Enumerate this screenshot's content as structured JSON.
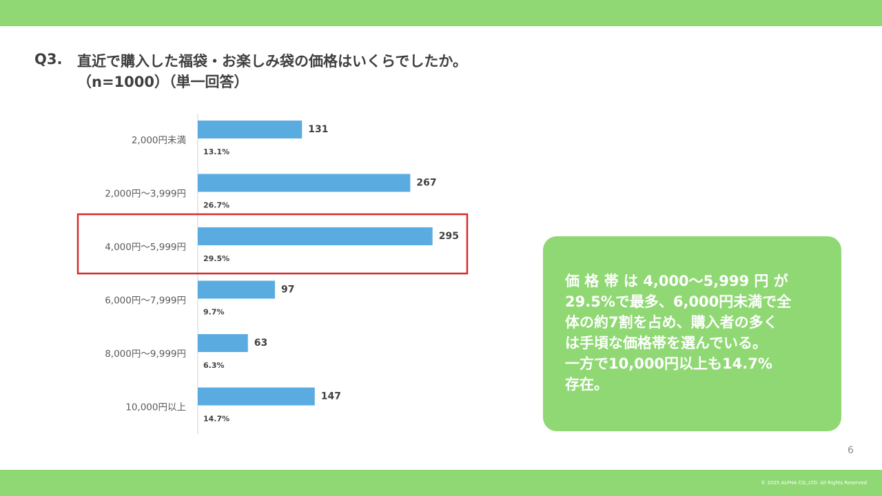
{
  "colors": {
    "brand_green": "#8fd873",
    "bar_blue": "#5aace0",
    "highlight_red": "#d62b2b"
  },
  "header": {
    "question_number": "Q3.",
    "question_line1": "直近で購入した福袋・お楽しみ袋の価格はいくらでしたか。",
    "question_line2": "（n=1000）（単一回答）"
  },
  "chart_data": {
    "type": "bar",
    "orientation": "horizontal",
    "categories": [
      "2,000円未満",
      "2,000円〜3,999円",
      "4,000円〜5,999円",
      "6,000円〜7,999円",
      "8,000円〜9,999円",
      "10,000円以上"
    ],
    "values": [
      131,
      267,
      295,
      97,
      63,
      147
    ],
    "percentages": [
      "13.1%",
      "26.7%",
      "29.5%",
      "9.7%",
      "6.3%",
      "14.7%"
    ],
    "highlighted_category": "4,000円〜5,999円",
    "xlim": [
      0,
      350
    ],
    "grid": false
  },
  "callout": {
    "lines": [
      "価 格 帯 は 4,000〜5,999 円 が",
      "29.5%で最多、6,000円未満で全",
      "体の約7割を占め、購入者の多く",
      "は手頃な価格帯を選んでいる。",
      "一方で10,000円以上も14.7%",
      "存在。"
    ]
  },
  "footer": {
    "page_number": "6",
    "copyright": "© 2025 ALPHA CO.,LTD. All Rights Reserved"
  }
}
